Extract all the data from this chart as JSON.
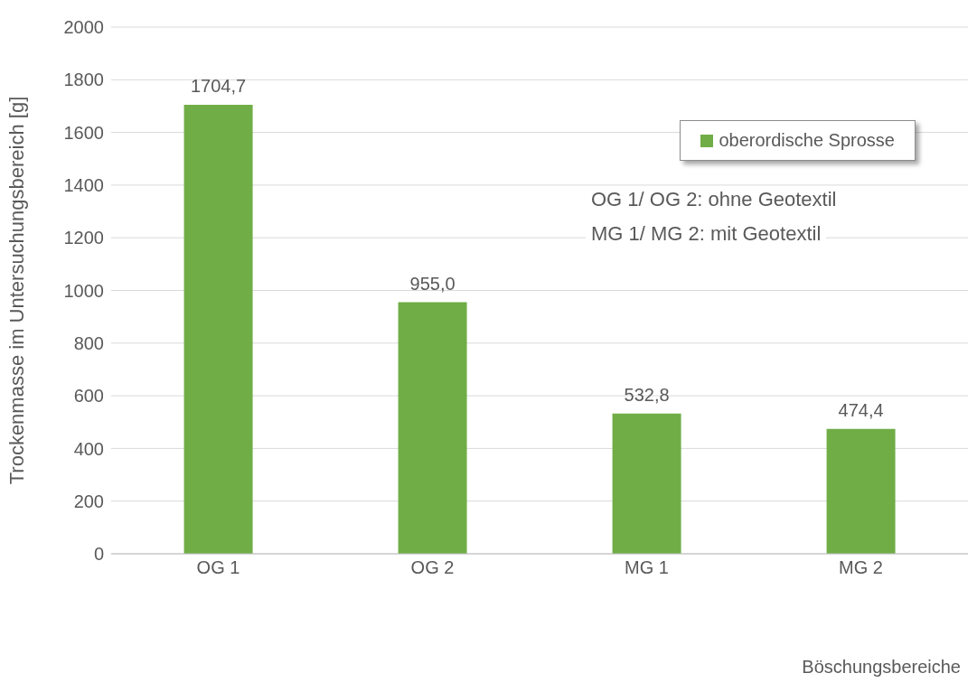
{
  "chart_data": {
    "type": "bar",
    "xlabel": "Böschungsbereiche",
    "ylabel": "Trockenmasse im Untersuchungsbereich [g]",
    "categories": [
      "OG 1",
      "OG 2",
      "MG 1",
      "MG 2"
    ],
    "series": [
      {
        "name": "oberordische Sprosse",
        "color": "#70ad47",
        "values": [
          1704.7,
          955.0,
          532.8,
          474.4
        ],
        "value_labels": [
          "1704,7",
          "955,0",
          "532,8",
          "474,4"
        ]
      }
    ],
    "ylim": [
      0,
      2000
    ],
    "yticks": [
      0,
      200,
      400,
      600,
      800,
      1000,
      1200,
      1400,
      1600,
      1800,
      2000
    ],
    "grid": "y",
    "legend": "top right",
    "annotations": [
      "OG 1/ OG 2: ohne Geotextil",
      "MG 1/ MG 2: mit Geotextil"
    ]
  }
}
